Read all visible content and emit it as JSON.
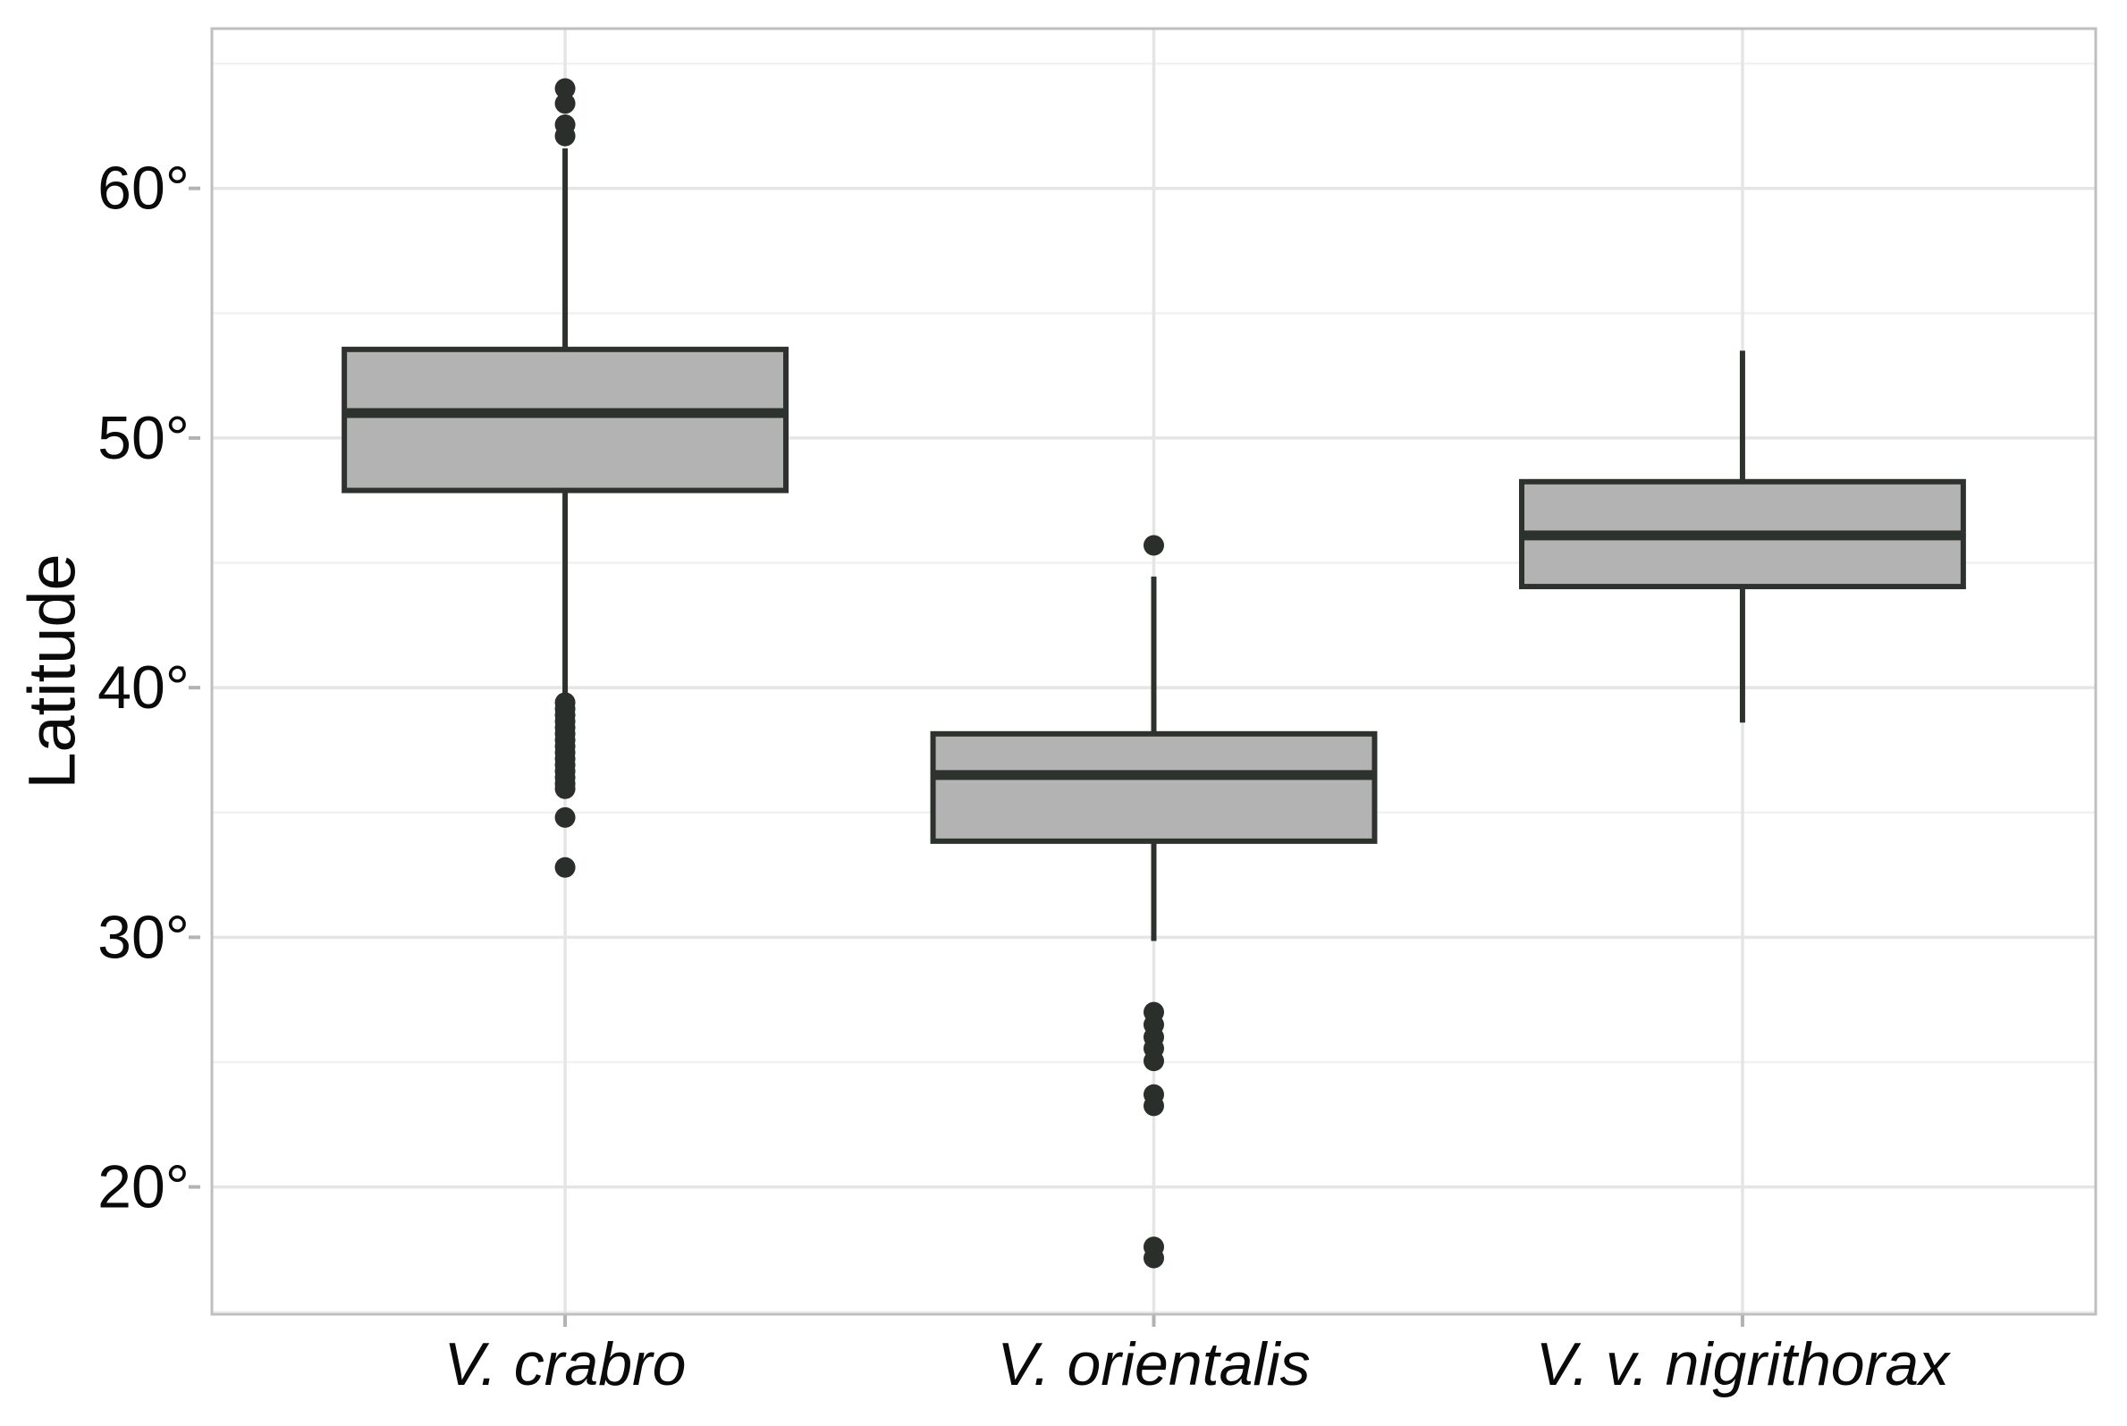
{
  "figure": {
    "ylabel": "Latitude"
  },
  "colors": {
    "background": "#ffffff",
    "panel_border": "#bfbfbf",
    "grid_major": "#e5e5e5",
    "grid_minor": "#f1f1f1",
    "axis_tick": "#b3b3b3",
    "box_fill": "#b3b3b3",
    "box_stroke": "#2e322f",
    "median_stroke": "#2e322f",
    "whisker_stroke": "#2e322f",
    "outlier_fill": "#2b2f2c",
    "text": "#0a0a0a"
  },
  "chart_data": {
    "type": "boxplot",
    "title": "",
    "xlabel": "",
    "ylabel": "Latitude",
    "grid": true,
    "legend": false,
    "categories": [
      "V. crabro",
      "V. orientalis",
      "V. v. nigrithorax"
    ],
    "ylim": [
      14.9,
      66.4
    ],
    "y_major_ticks": [
      {
        "value": 20,
        "label": "20°"
      },
      {
        "value": 30,
        "label": "30°"
      },
      {
        "value": 40,
        "label": "40°"
      },
      {
        "value": 50,
        "label": "50°"
      },
      {
        "value": 60,
        "label": "60°"
      }
    ],
    "y_minor_ticks": [
      15,
      25,
      35,
      45,
      55,
      65
    ],
    "series": [
      {
        "name": "V. crabro",
        "whisker_low": 39.65,
        "q1": 47.9,
        "median": 51.0,
        "q3": 53.55,
        "whisker_high": 61.6,
        "outliers": [
          64.0,
          63.4,
          62.55,
          62.1,
          39.4,
          39.15,
          38.9,
          38.65,
          38.4,
          38.15,
          37.9,
          37.65,
          37.4,
          37.15,
          36.9,
          36.65,
          36.4,
          36.15,
          35.95,
          34.8,
          32.8
        ]
      },
      {
        "name": "V. orientalis",
        "whisker_low": 29.85,
        "q1": 33.85,
        "median": 36.5,
        "q3": 38.15,
        "whisker_high": 44.45,
        "outliers": [
          45.7,
          27.0,
          26.5,
          26.0,
          25.55,
          25.05,
          23.7,
          23.25,
          17.6,
          17.15
        ]
      },
      {
        "name": "V. v. nigrithorax",
        "whisker_low": 38.6,
        "q1": 44.05,
        "median": 46.1,
        "q3": 48.25,
        "whisker_high": 53.5,
        "outliers": []
      }
    ]
  }
}
